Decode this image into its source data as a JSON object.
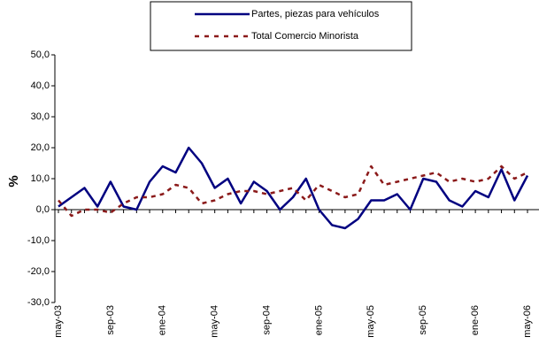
{
  "chart_data": {
    "type": "line",
    "categories": [
      "may-03",
      null,
      null,
      null,
      "sep-03",
      null,
      null,
      null,
      "ene-04",
      null,
      null,
      null,
      "may-04",
      null,
      null,
      null,
      "sep-04",
      null,
      null,
      null,
      "ene-05",
      null,
      null,
      null,
      "may-05",
      null,
      null,
      null,
      "sep-05",
      null,
      null,
      null,
      "ene-06",
      null,
      null,
      null,
      "may-06"
    ],
    "series": [
      {
        "name": "Partes, piezas  para vehículos",
        "color": "#000080",
        "style": "solid",
        "values": [
          1,
          4,
          7,
          1,
          9,
          1,
          0,
          9,
          14,
          12,
          20,
          15,
          7,
          10,
          2,
          9,
          6,
          0,
          4,
          10,
          0,
          -5,
          -6,
          -3,
          3,
          3,
          5,
          0,
          10,
          9,
          3,
          1,
          6,
          4,
          13,
          3,
          11
        ]
      },
      {
        "name": "Total Comercio Minorista",
        "color": "#8b1a1a",
        "style": "dashed",
        "values": [
          3,
          -2,
          0,
          0,
          -1,
          2,
          4,
          4,
          5,
          8,
          7,
          2,
          3,
          5,
          6,
          6,
          5,
          6,
          7,
          3,
          8,
          6,
          4,
          5,
          14,
          8,
          9,
          10,
          11,
          12,
          9,
          10,
          9,
          10,
          14,
          10,
          12
        ]
      }
    ],
    "ylabel": "%",
    "ylim": [
      -30,
      50
    ],
    "yticks": [
      {
        "value": -30,
        "label": "-30,0"
      },
      {
        "value": -20,
        "label": "-20,0"
      },
      {
        "value": -10,
        "label": "-10,0"
      },
      {
        "value": 0,
        "label": "0,0"
      },
      {
        "value": 10,
        "label": "10,0"
      },
      {
        "value": 20,
        "label": "20,0"
      },
      {
        "value": 30,
        "label": "30,0"
      },
      {
        "value": 40,
        "label": "40,0"
      },
      {
        "value": 50,
        "label": "50,0"
      }
    ],
    "legend": "top"
  }
}
